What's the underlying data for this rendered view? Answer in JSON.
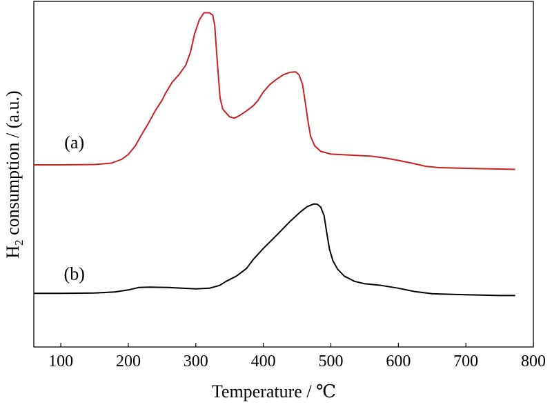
{
  "chart_data": {
    "type": "line",
    "title": "",
    "xlabel": "Temperature / ℃",
    "ylabel_main": "H",
    "ylabel_sub": "2",
    "ylabel_rest": " consumption / (a.u.)",
    "xlim": [
      60,
      800
    ],
    "ylim": [
      0,
      1
    ],
    "x_ticks": [
      100,
      200,
      300,
      400,
      500,
      600,
      700,
      800
    ],
    "grid": false,
    "annotations": [
      {
        "text": "(a)",
        "x": 120,
        "y": 0.575
      },
      {
        "text": "(b)",
        "x": 120,
        "y": 0.195
      }
    ],
    "series": [
      {
        "label": "(a)",
        "color": "#cc1f1f",
        "points": [
          [
            60,
            0.527
          ],
          [
            100,
            0.527
          ],
          [
            150,
            0.528
          ],
          [
            175,
            0.532
          ],
          [
            190,
            0.543
          ],
          [
            200,
            0.557
          ],
          [
            210,
            0.581
          ],
          [
            220,
            0.615
          ],
          [
            230,
            0.648
          ],
          [
            240,
            0.684
          ],
          [
            250,
            0.714
          ],
          [
            255,
            0.734
          ],
          [
            265,
            0.766
          ],
          [
            275,
            0.788
          ],
          [
            285,
            0.815
          ],
          [
            292,
            0.853
          ],
          [
            298,
            0.905
          ],
          [
            305,
            0.946
          ],
          [
            312,
            0.967
          ],
          [
            320,
            0.967
          ],
          [
            325,
            0.96
          ],
          [
            328,
            0.93
          ],
          [
            332,
            0.82
          ],
          [
            336,
            0.72
          ],
          [
            340,
            0.688
          ],
          [
            350,
            0.666
          ],
          [
            357,
            0.662
          ],
          [
            365,
            0.67
          ],
          [
            375,
            0.683
          ],
          [
            385,
            0.698
          ],
          [
            392,
            0.713
          ],
          [
            400,
            0.738
          ],
          [
            410,
            0.76
          ],
          [
            420,
            0.775
          ],
          [
            430,
            0.788
          ],
          [
            440,
            0.795
          ],
          [
            448,
            0.796
          ],
          [
            453,
            0.787
          ],
          [
            458,
            0.76
          ],
          [
            462,
            0.71
          ],
          [
            466,
            0.655
          ],
          [
            470,
            0.61
          ],
          [
            476,
            0.582
          ],
          [
            485,
            0.566
          ],
          [
            500,
            0.558
          ],
          [
            520,
            0.556
          ],
          [
            540,
            0.554
          ],
          [
            560,
            0.552
          ],
          [
            580,
            0.547
          ],
          [
            600,
            0.54
          ],
          [
            620,
            0.532
          ],
          [
            640,
            0.523
          ],
          [
            660,
            0.519
          ],
          [
            700,
            0.517
          ],
          [
            750,
            0.515
          ],
          [
            773,
            0.514
          ]
        ]
      },
      {
        "label": "(b)",
        "color": "#000000",
        "points": [
          [
            60,
            0.155
          ],
          [
            100,
            0.155
          ],
          [
            150,
            0.156
          ],
          [
            180,
            0.159
          ],
          [
            200,
            0.165
          ],
          [
            215,
            0.172
          ],
          [
            230,
            0.173
          ],
          [
            260,
            0.172
          ],
          [
            300,
            0.168
          ],
          [
            320,
            0.17
          ],
          [
            335,
            0.178
          ],
          [
            345,
            0.19
          ],
          [
            360,
            0.205
          ],
          [
            375,
            0.227
          ],
          [
            385,
            0.253
          ],
          [
            400,
            0.285
          ],
          [
            420,
            0.324
          ],
          [
            440,
            0.364
          ],
          [
            455,
            0.391
          ],
          [
            465,
            0.406
          ],
          [
            475,
            0.414
          ],
          [
            480,
            0.413
          ],
          [
            485,
            0.405
          ],
          [
            490,
            0.38
          ],
          [
            494,
            0.33
          ],
          [
            498,
            0.283
          ],
          [
            503,
            0.25
          ],
          [
            510,
            0.225
          ],
          [
            520,
            0.205
          ],
          [
            535,
            0.19
          ],
          [
            550,
            0.183
          ],
          [
            575,
            0.178
          ],
          [
            600,
            0.17
          ],
          [
            625,
            0.16
          ],
          [
            650,
            0.154
          ],
          [
            700,
            0.151
          ],
          [
            750,
            0.149
          ],
          [
            773,
            0.149
          ]
        ]
      }
    ]
  }
}
